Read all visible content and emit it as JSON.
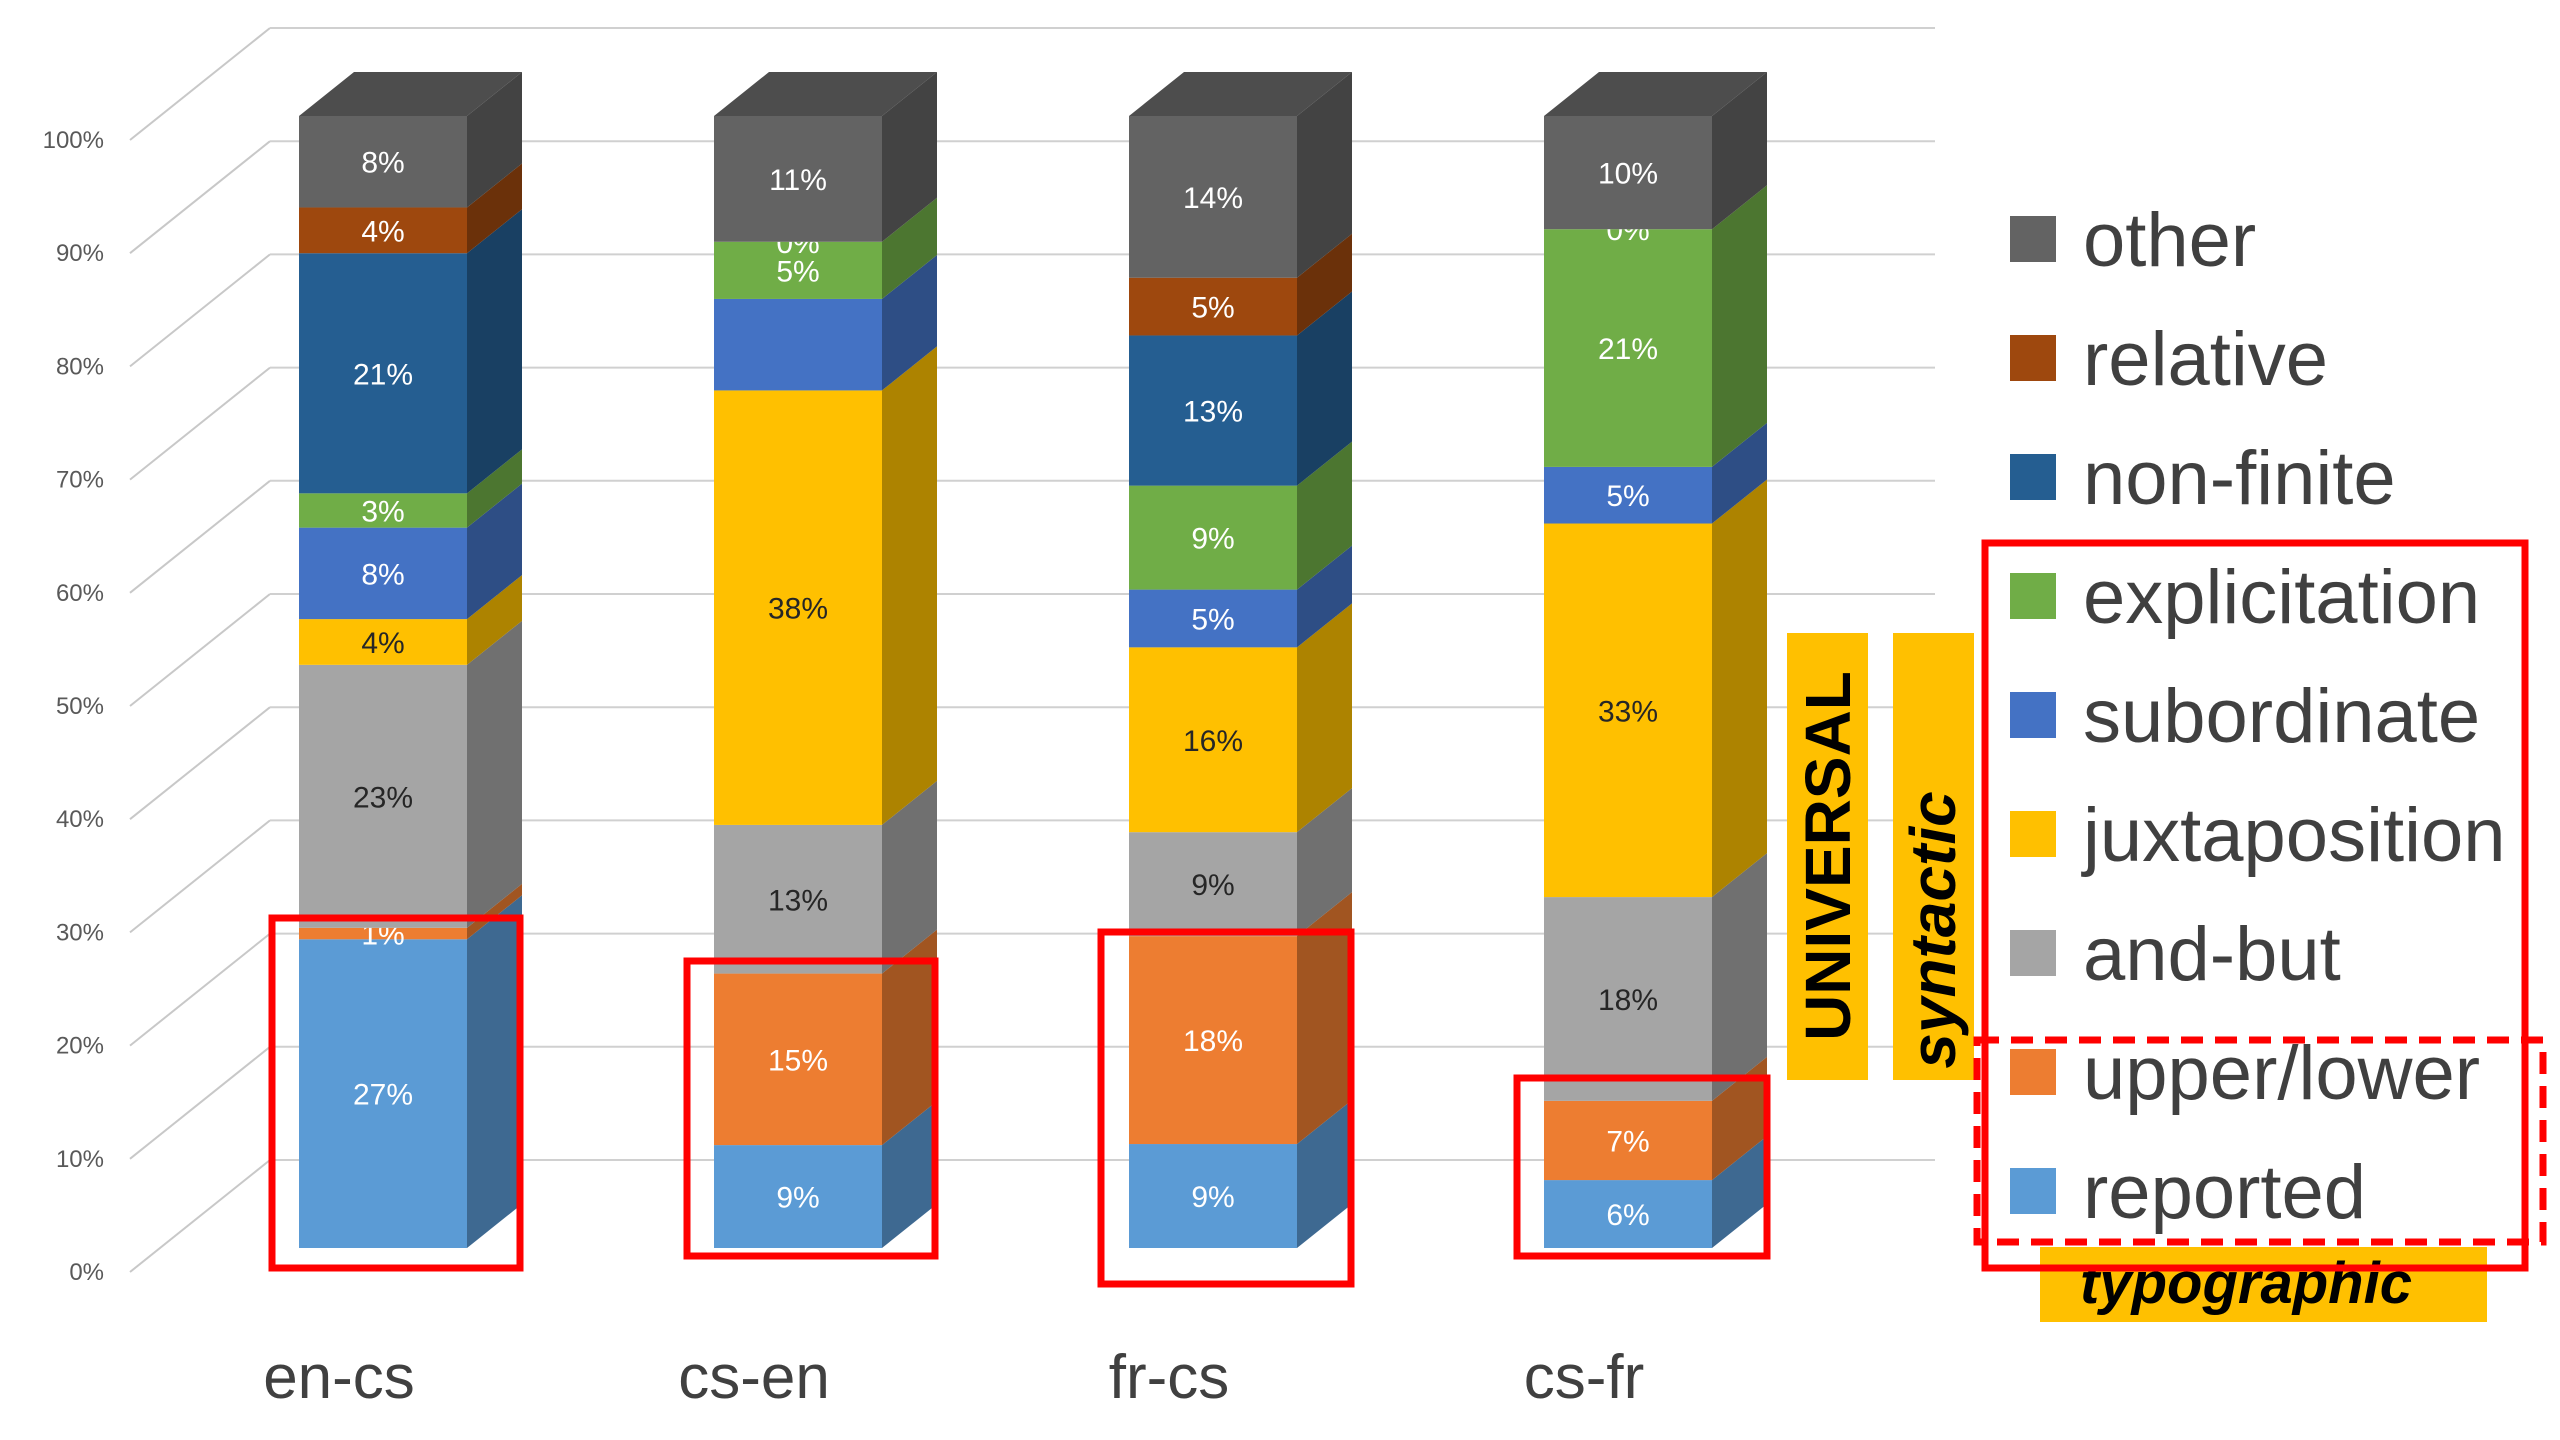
{
  "chart_data": {
    "type": "bar",
    "stacked": true,
    "three_d": true,
    "categories": [
      "en-cs",
      "cs-en",
      "fr-cs",
      "cs-fr"
    ],
    "yticks": [
      "0%",
      "10%",
      "20%",
      "30%",
      "40%",
      "50%",
      "60%",
      "70%",
      "80%",
      "90%",
      "100%"
    ],
    "ylim": [
      0,
      100
    ],
    "legend_position": "right",
    "series": [
      {
        "name": "reported",
        "color": "#5B9BD5",
        "labels": [
          "27%",
          "9%",
          "9%",
          "6%"
        ],
        "values": [
          27,
          9,
          9,
          6
        ]
      },
      {
        "name": "upper/lower",
        "color": "#ED7D31",
        "labels": [
          "1%",
          "15%",
          "18%",
          "7%"
        ],
        "values": [
          1,
          15,
          18,
          7
        ]
      },
      {
        "name": "and-but",
        "color": "#A5A5A5",
        "labels": [
          "23%",
          "13%",
          "9%",
          "18%"
        ],
        "values": [
          23,
          13,
          9,
          18
        ]
      },
      {
        "name": "juxtaposition",
        "color": "#FFC000",
        "labels": [
          "4%",
          "38%",
          "16%",
          "33%"
        ],
        "values": [
          4,
          38,
          16,
          33
        ]
      },
      {
        "name": "subordinate",
        "color": "#4472C4",
        "labels": [
          "8%",
          "",
          "5%",
          "5%"
        ],
        "values": [
          8,
          8,
          5,
          5
        ]
      },
      {
        "name": "explicitation",
        "color": "#70AD47",
        "labels": [
          "3%",
          "5%",
          "9%",
          "21%"
        ],
        "values": [
          3,
          5,
          9,
          21
        ]
      },
      {
        "name": "non-finite",
        "color": "#255E91",
        "labels": [
          "21%",
          "",
          "13%",
          ""
        ],
        "values": [
          21,
          0,
          13,
          0
        ]
      },
      {
        "name": "relative",
        "color": "#9E480E",
        "labels": [
          "4%",
          "0%",
          "5%",
          "0%"
        ],
        "values": [
          4,
          0,
          5,
          0
        ]
      },
      {
        "name": "other",
        "color": "#636363",
        "labels": [
          "8%",
          "11%",
          "14%",
          "10%"
        ],
        "values": [
          8,
          11,
          14,
          10
        ]
      }
    ],
    "legend_order": [
      "other",
      "relative",
      "non-finite",
      "explicitation",
      "subordinate",
      "juxtaposition",
      "and-but",
      "upper/lower",
      "reported"
    ]
  },
  "annotations": {
    "universal_label": "UNIVERSAL",
    "syntactic_label": "syntactic",
    "typographic_label": "typographic",
    "highlight_color": "#FF0000",
    "tag_color": "#FFC000"
  }
}
